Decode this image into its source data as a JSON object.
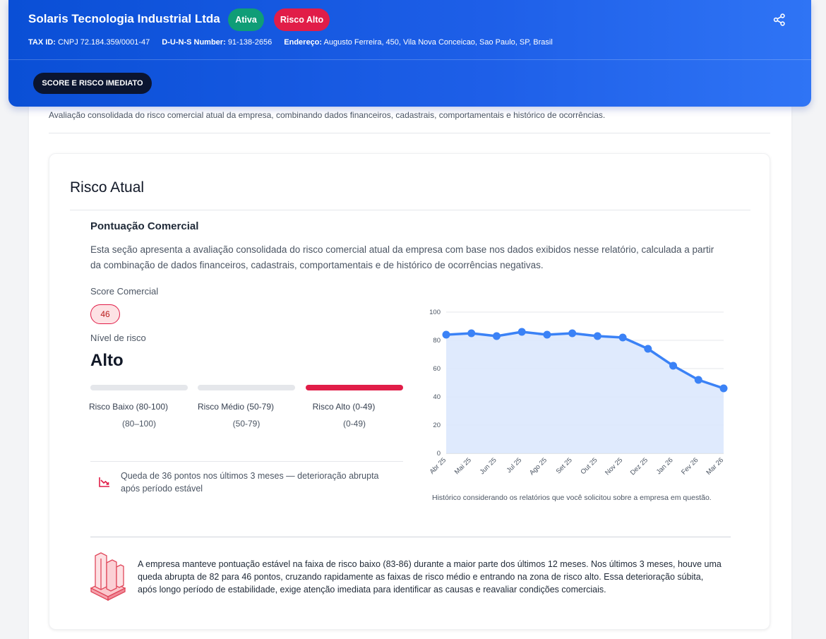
{
  "header": {
    "company_name": "Solaris Tecnologia Industrial Ltda",
    "status_badge": "Ativa",
    "risk_badge": "Risco Alto",
    "tax_id_label": "TAX ID:",
    "tax_id_value": "CNPJ 72.184.359/0001-47",
    "duns_label": "D-U-N-S Number:",
    "duns_value": "91-138-2656",
    "address_label": "Endereço:",
    "address_value": "Augusto Ferreira, 450, Vila Nova Conceicao, Sao Paulo, SP, Brasil",
    "share_icon": "share-icon",
    "tab_label": "SCORE E RISCO IMEDIATO"
  },
  "section": {
    "description": "Avaliação consolidada do risco comercial atual da empresa, combinando dados financeiros, cadastrais, comportamentais e histórico de ocorrências."
  },
  "risk_card": {
    "title": "Risco Atual",
    "subtitle": "Pontuação Comercial",
    "description": "Esta seção apresenta a avaliação consolidada do risco comercial atual da empresa com base nos dados exibidos nesse relatório, calculada a partir da combinação de dados financeiros, cadastrais, comportamentais e de histórico de ocorrências negativas.",
    "score_label": "Score Comercial",
    "score_value": "46",
    "level_label": "Nível de risco",
    "level_value": "Alto",
    "bands": [
      {
        "label": "Risco Baixo (80-100)",
        "range": "(80–100)",
        "active": false
      },
      {
        "label": "Risco Médio (50-79)",
        "range": "(50-79)",
        "active": false
      },
      {
        "label": "Risco Alto (0-49)",
        "range": "(0-49)",
        "active": true
      }
    ],
    "trend_icon": "trending-down-icon",
    "trend_text": "Queda de 36 pontos nos últimos 3 meses — deterioração abrupta após período estável",
    "chart_note": "Histórico considerando os relatórios que você solicitou sobre a empresa em questão.",
    "summary_icon": "building-chart-icon",
    "summary_text": "A empresa manteve pontuação estável na faixa de risco baixo (83-86) durante a maior parte dos últimos 12 meses. Nos últimos 3 meses, houve uma queda abrupta de 82 para 46 pontos, cruzando rapidamente as faixas de risco médio e entrando na zona de risco alto. Essa deterioração súbita, após longo período de estabilidade, exige atenção imediata para identificar as causas e reavaliar condições comerciais."
  },
  "colors": {
    "header_start": "#0a4fd6",
    "header_end": "#2f74f5",
    "active_badge": "#0f9d77",
    "risk_red": "#e11d48",
    "line_blue": "#3b82f6",
    "area_fill": "#dbe8fd"
  },
  "chart_data": {
    "type": "area",
    "categories": [
      "Abr 25",
      "Mai 25",
      "Jun 25",
      "Jul 25",
      "Ago 25",
      "Set 25",
      "Out 25",
      "Nov 25",
      "Dez 25",
      "Jan 26",
      "Fev 26",
      "Mar 26"
    ],
    "series": [
      {
        "values": [
          84,
          85,
          83,
          86,
          84,
          85,
          83,
          82,
          74,
          62,
          52,
          46
        ]
      }
    ],
    "yticks": [
      0,
      20,
      40,
      60,
      80,
      100
    ],
    "ylim": [
      0,
      100
    ],
    "grid": true,
    "legend": "none"
  }
}
